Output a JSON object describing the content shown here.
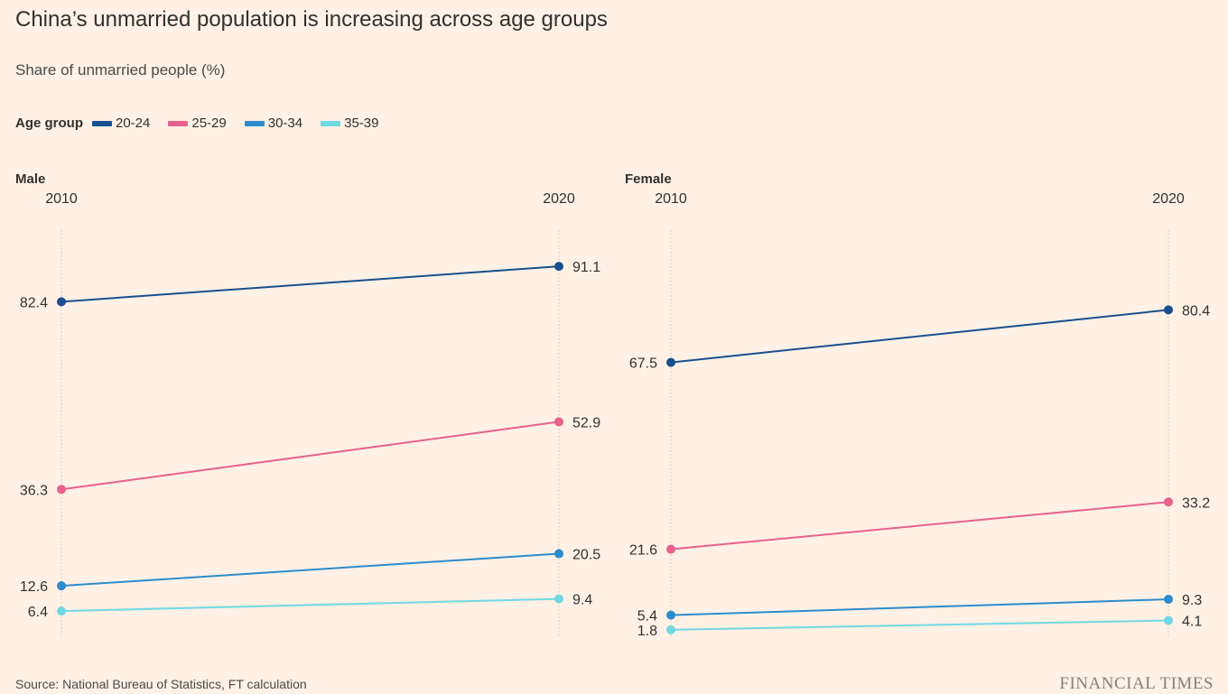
{
  "title": "China’s unmarried population is increasing across age groups",
  "subtitle": "Share of unmarried people (%)",
  "legend": {
    "title": "Age group",
    "items": [
      {
        "label": "20-24",
        "color": "#174f8f"
      },
      {
        "label": "25-29",
        "color": "#e8618c"
      },
      {
        "label": "30-34",
        "color": "#2b8ccc"
      },
      {
        "label": "35-39",
        "color": "#70d8e3"
      }
    ]
  },
  "source": "Source: National Bureau of Statistics, FT calculation",
  "logo": "FINANCIAL TIMES",
  "chart_data": [
    {
      "type": "line",
      "title": "Male",
      "x": [
        "2010",
        "2020"
      ],
      "ylim": [
        0,
        100
      ],
      "series": [
        {
          "name": "20-24",
          "values": [
            82.4,
            91.1
          ],
          "labels": [
            "82.4",
            "91.1"
          ]
        },
        {
          "name": "25-29",
          "values": [
            36.3,
            52.9
          ],
          "labels": [
            "36.3",
            "52.9"
          ]
        },
        {
          "name": "30-34",
          "values": [
            12.6,
            20.5
          ],
          "labels": [
            "12.6",
            "20.5"
          ]
        },
        {
          "name": "35-39",
          "values": [
            6.4,
            9.4
          ],
          "labels": [
            "6.4",
            "9.4"
          ]
        }
      ]
    },
    {
      "type": "line",
      "title": "Female",
      "x": [
        "2010",
        "2020"
      ],
      "ylim": [
        0,
        100
      ],
      "series": [
        {
          "name": "20-24",
          "values": [
            67.5,
            80.4
          ],
          "labels": [
            "67.5",
            "80.4"
          ]
        },
        {
          "name": "25-29",
          "values": [
            21.6,
            33.2
          ],
          "labels": [
            "21.6",
            "33.2"
          ]
        },
        {
          "name": "30-34",
          "values": [
            5.4,
            9.3
          ],
          "labels": [
            "5.4",
            "9.3"
          ]
        },
        {
          "name": "35-39",
          "values": [
            1.8,
            4.1
          ],
          "labels": [
            "1.8",
            "4.1"
          ]
        }
      ]
    }
  ]
}
